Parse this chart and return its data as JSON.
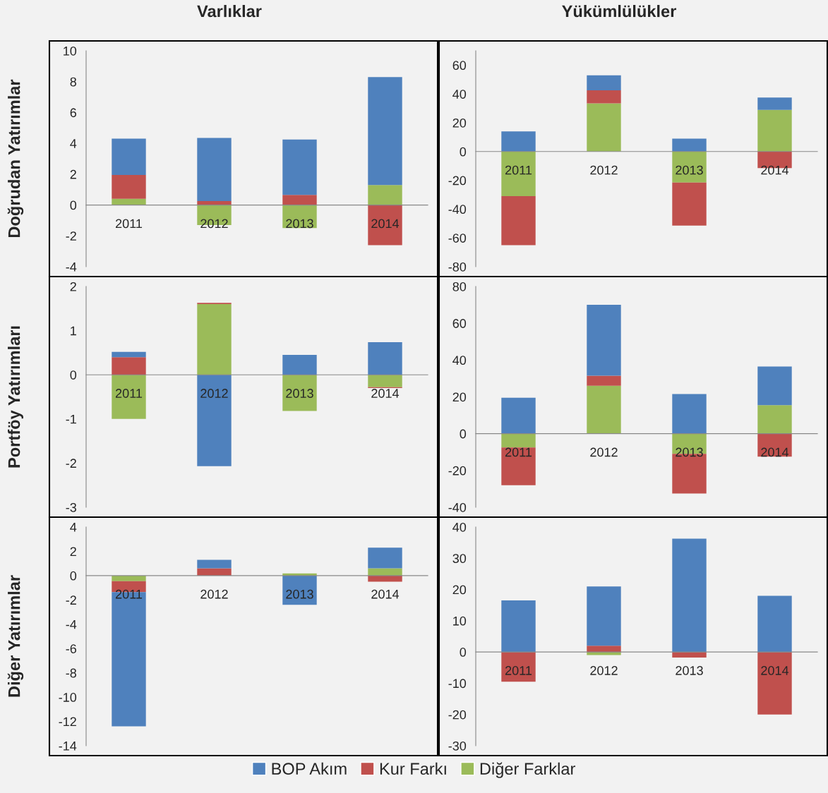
{
  "chart_data": [
    {
      "type": "bar",
      "stacked": true,
      "title": "Varlıklar",
      "ylabel": "Doğrudan Yatırımlar",
      "categories": [
        "2011",
        "2012",
        "2013",
        "2014"
      ],
      "ylim": [
        -4,
        10
      ],
      "yticks": [
        -4,
        -2,
        0,
        2,
        4,
        6,
        8,
        10
      ],
      "grid": false,
      "series": [
        {
          "color": "#9bbb59",
          "values": [
            0.4,
            -1.3,
            -1.5,
            1.3
          ]
        },
        {
          "color": "#c0504d",
          "values": [
            1.55,
            0.25,
            0.65,
            -2.6
          ]
        },
        {
          "color": "#4f81bd",
          "values": [
            2.35,
            4.1,
            3.6,
            7.0
          ]
        }
      ]
    },
    {
      "type": "bar",
      "stacked": true,
      "title": "Yükümlülükler",
      "categories": [
        "2011",
        "2012",
        "2013",
        "2014"
      ],
      "ylim": [
        -80,
        70
      ],
      "yticks": [
        -80,
        -60,
        -40,
        -20,
        0,
        20,
        40,
        60
      ],
      "grid": false,
      "series": [
        {
          "color": "#9bbb59",
          "values": [
            -31,
            33.5,
            -21.5,
            29
          ]
        },
        {
          "color": "#c0504d",
          "values": [
            -34,
            9,
            -30,
            -11.5
          ]
        },
        {
          "color": "#4f81bd",
          "values": [
            14,
            10.5,
            9,
            8.5
          ]
        }
      ]
    },
    {
      "type": "bar",
      "stacked": true,
      "ylabel": "Portföy Yatırımları",
      "categories": [
        "2011",
        "2012",
        "2013",
        "2014"
      ],
      "ylim": [
        -3,
        2
      ],
      "yticks": [
        -3,
        -2,
        -1,
        0,
        1,
        2
      ],
      "grid": false,
      "series": [
        {
          "color": "#9bbb59",
          "values": [
            -1.0,
            1.6,
            -0.82,
            -0.28
          ]
        },
        {
          "color": "#c0504d",
          "values": [
            0.4,
            0.03,
            null,
            -0.02
          ]
        },
        {
          "color": "#4f81bd",
          "values": [
            0.12,
            -2.07,
            0.45,
            0.74
          ]
        }
      ]
    },
    {
      "type": "bar",
      "stacked": true,
      "categories": [
        "2011",
        "2012",
        "2013",
        "2014"
      ],
      "ylim": [
        -40,
        80
      ],
      "yticks": [
        -40,
        -20,
        0,
        20,
        40,
        60,
        80
      ],
      "grid": false,
      "series": [
        {
          "color": "#9bbb59",
          "values": [
            -7.5,
            26,
            -11,
            15.5
          ]
        },
        {
          "color": "#c0504d",
          "values": [
            -20.5,
            5.5,
            -21.5,
            -12.5
          ]
        },
        {
          "color": "#4f81bd",
          "values": [
            19.5,
            38.5,
            21.5,
            21
          ]
        }
      ]
    },
    {
      "type": "bar",
      "stacked": true,
      "ylabel": "Diğer Yatırımlar",
      "categories": [
        "2011",
        "2012",
        "2013",
        "2014"
      ],
      "ylim": [
        -14,
        4
      ],
      "yticks": [
        -14,
        -12,
        -10,
        -8,
        -6,
        -4,
        -2,
        0,
        2,
        4
      ],
      "grid": false,
      "series": [
        {
          "color": "#9bbb59",
          "values": [
            -0.45,
            null,
            0.18,
            0.6
          ]
        },
        {
          "color": "#c0504d",
          "values": [
            -0.9,
            0.6,
            null,
            -0.5
          ]
        },
        {
          "color": "#4f81bd",
          "values": [
            -11.05,
            0.7,
            -2.4,
            1.7
          ]
        }
      ]
    },
    {
      "type": "bar",
      "stacked": true,
      "categories": [
        "2011",
        "2012",
        "2013",
        "2014"
      ],
      "ylim": [
        -30,
        40
      ],
      "yticks": [
        -30,
        -20,
        -10,
        0,
        10,
        20,
        30,
        40
      ],
      "grid": false,
      "legend": "bottom",
      "series": [
        {
          "name": "Diğer Farklar",
          "color": "#9bbb59",
          "values": [
            0,
            -1,
            0,
            null
          ]
        },
        {
          "name": "Kur Farkı",
          "color": "#c0504d",
          "values": [
            -9.5,
            2,
            -1.8,
            -20
          ]
        },
        {
          "name": "BOP Akım",
          "color": "#4f81bd",
          "values": [
            16.5,
            19,
            36.3,
            18
          ]
        }
      ]
    }
  ]
}
